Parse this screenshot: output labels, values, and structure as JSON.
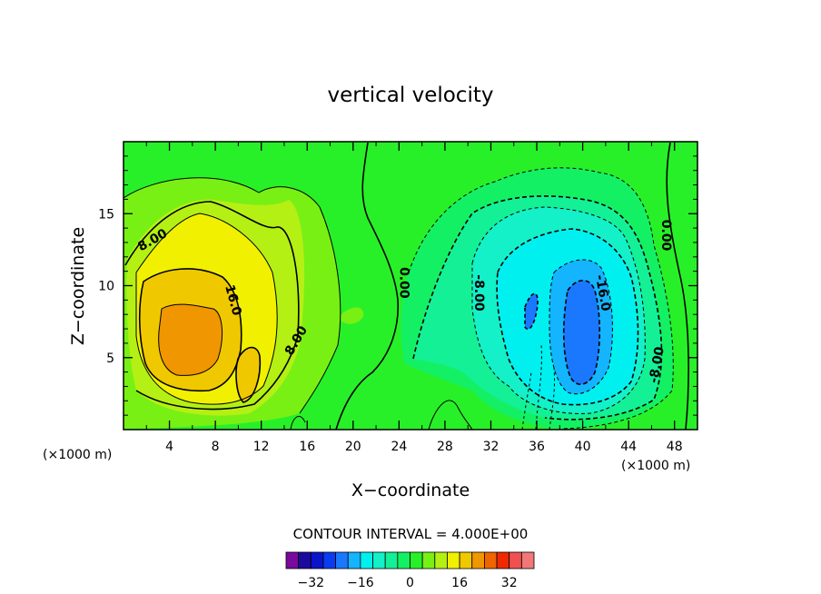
{
  "chart_data": {
    "type": "contour",
    "title": "vertical velocity",
    "xlabel": "X−coordinate",
    "ylabel": "Z−coordinate",
    "x_unit_left": "(×1000 m)",
    "x_unit_right": "(×1000 m)",
    "xlim": [
      0,
      50
    ],
    "ylim": [
      0,
      20
    ],
    "x_ticks": [
      4,
      8,
      12,
      16,
      20,
      24,
      28,
      32,
      36,
      40,
      44,
      48
    ],
    "y_ticks": [
      5,
      10,
      15
    ],
    "contour_interval_text": "CONTOUR INTERVAL = 4.000E+00",
    "contour_labels": [
      {
        "text": "8.00",
        "x": 2.5,
        "y": 13.2,
        "rot": -30
      },
      {
        "text": "16.0",
        "x": 9.6,
        "y": 9.0,
        "rot": 75
      },
      {
        "text": "8.00",
        "x": 15.0,
        "y": 6.2,
        "rot": -60
      },
      {
        "text": "0.00",
        "x": 24.5,
        "y": 10.2,
        "rot": 90
      },
      {
        "text": "-8.00",
        "x": 31.0,
        "y": 9.5,
        "rot": 90
      },
      {
        "text": "-16.0",
        "x": 41.8,
        "y": 9.5,
        "rot": 80
      },
      {
        "text": "-8.00",
        "x": 46.4,
        "y": 4.5,
        "rot": -80
      },
      {
        "text": "0.00",
        "x": 47.3,
        "y": 13.5,
        "rot": 90
      }
    ],
    "colorbar": {
      "levels": [
        -40,
        -36,
        -32,
        -28,
        -24,
        -20,
        -16,
        -12,
        -8,
        -4,
        0,
        4,
        8,
        12,
        16,
        20,
        24,
        28,
        32,
        36,
        40
      ],
      "colors": [
        "#7a0a9e",
        "#1c0a9e",
        "#0a14c8",
        "#0a3cf0",
        "#1a78ff",
        "#14b4ff",
        "#00f0f0",
        "#14f0c8",
        "#14f096",
        "#14f064",
        "#28f028",
        "#78f014",
        "#b4f014",
        "#f0f000",
        "#f0c800",
        "#f09600",
        "#f06400",
        "#f02800",
        "#f05050",
        "#f07878"
      ],
      "tick_labels": [
        "−32",
        "−16",
        "0",
        "16",
        "32"
      ],
      "tick_values": [
        -32,
        -16,
        0,
        16,
        32
      ]
    }
  }
}
